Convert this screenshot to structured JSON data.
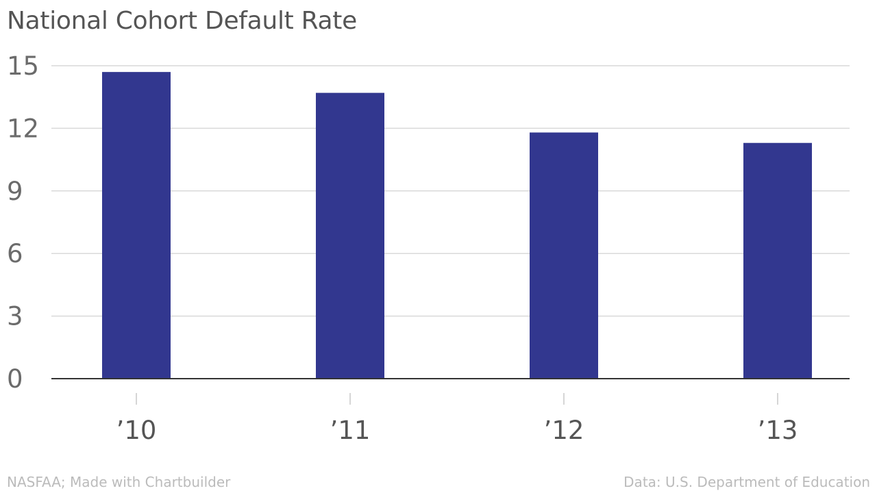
{
  "title": "National Cohort Default Rate",
  "footer": {
    "left": "NASFAA; Made with Chartbuilder",
    "right": "Data: U.S. Department of Education"
  },
  "colors": {
    "bar": "#32378f",
    "grid": "#d9d9d9",
    "axis": "#333333",
    "tick": "#c8c8c8"
  },
  "chart_data": {
    "type": "bar",
    "title": "National Cohort Default Rate",
    "categories": [
      "’10",
      "’11",
      "’12",
      "’13"
    ],
    "values": [
      14.7,
      13.7,
      11.8,
      11.3
    ],
    "xlabel": "",
    "ylabel": "",
    "ylim": [
      0,
      15
    ],
    "yticks": [
      0,
      3,
      6,
      9,
      12,
      15
    ],
    "grid": true,
    "legend": "none"
  }
}
